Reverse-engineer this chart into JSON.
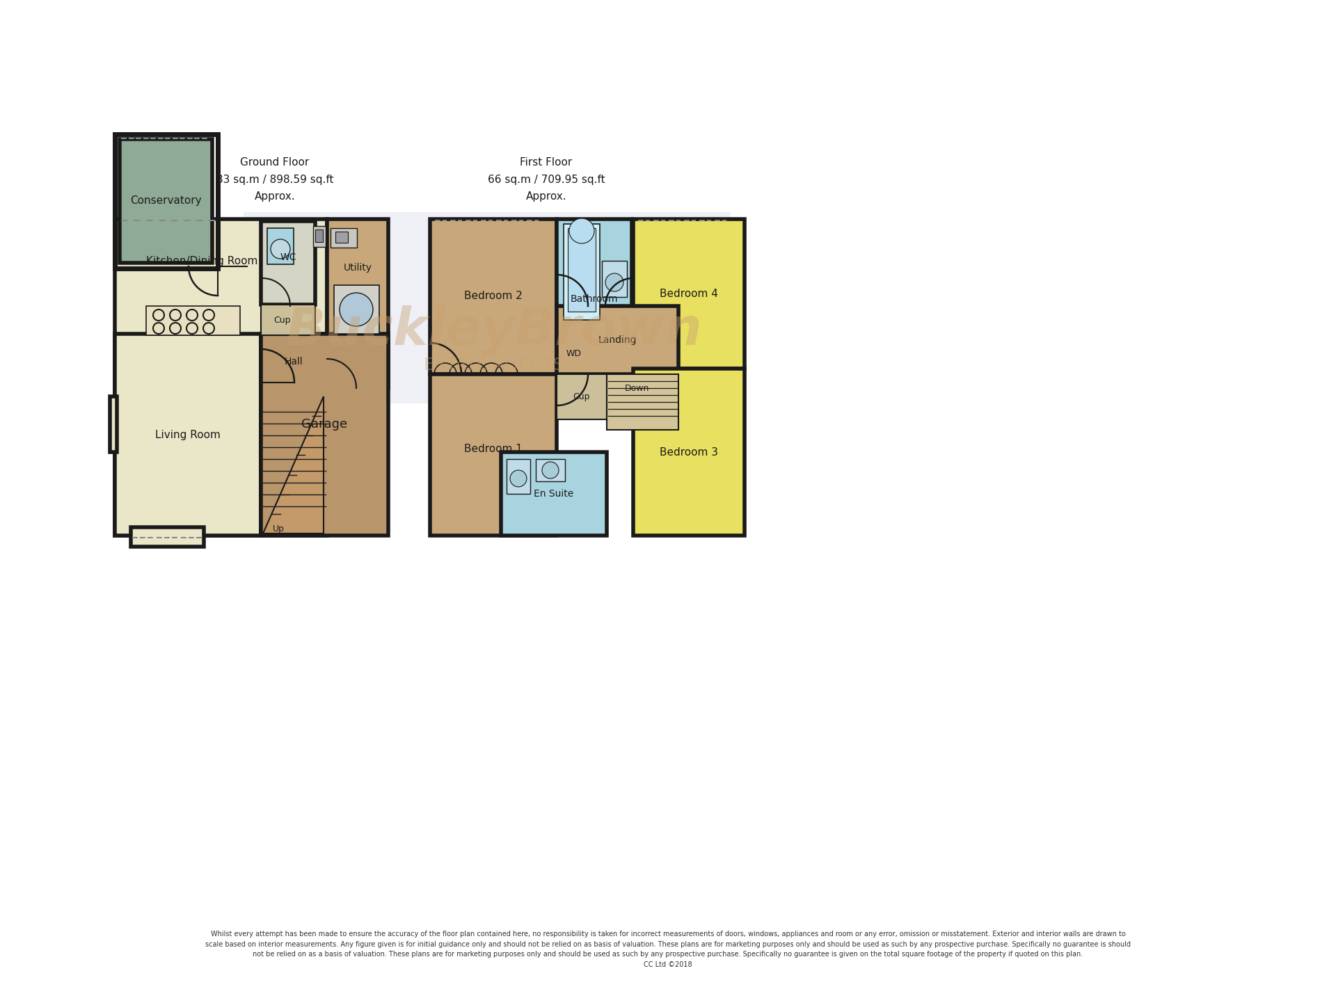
{
  "bg": "#ffffff",
  "wc": "#1a1a1a",
  "lw": 4.0,
  "conservatory_color": "#8faa96",
  "kitchen_color": "#eae6c8",
  "living_color": "#eae6c8",
  "hall_color": "#c8a87a",
  "garage_color": "#b8956a",
  "utility_color": "#c8a87a",
  "bed1_color": "#c8a87a",
  "bed2_color": "#c8a87a",
  "bed3_color": "#e8e060",
  "bed4_color": "#e8e060",
  "bath_color": "#a8d4e0",
  "ensuite_color": "#a8d4e0",
  "landing_color": "#c8a87a",
  "wm_color": "#c8a070",
  "ground_label": "Ground Floor\n83 sq.m / 898.59 sq.ft\nApprox.",
  "first_label": "First Floor\n66 sq.m / 709.95 sq.ft\nApprox.",
  "disclaimer": "Whilst every attempt has been made to ensure the accuracy of the floor plan contained here, no responsibility is taken for incorrect measurements of doors, windows, appliances and room or any error, omission or misstatement. Exterior and interior walls are drawn to\nscale based on interior measurements. Any figure given is for initial guidance only and should not be relied on as basis of valuation. These plans are for marketing purposes only and should be used as such by any prospective purchase. Specifically no guarantee is should\nnot be relied on as a basis of valuation. These plans are for marketing purposes only and should be used as such by any prospective purchase. Specifically no guarantee is given on the total square footage of the property if quoted on this plan.\nCC Ltd ©2018"
}
